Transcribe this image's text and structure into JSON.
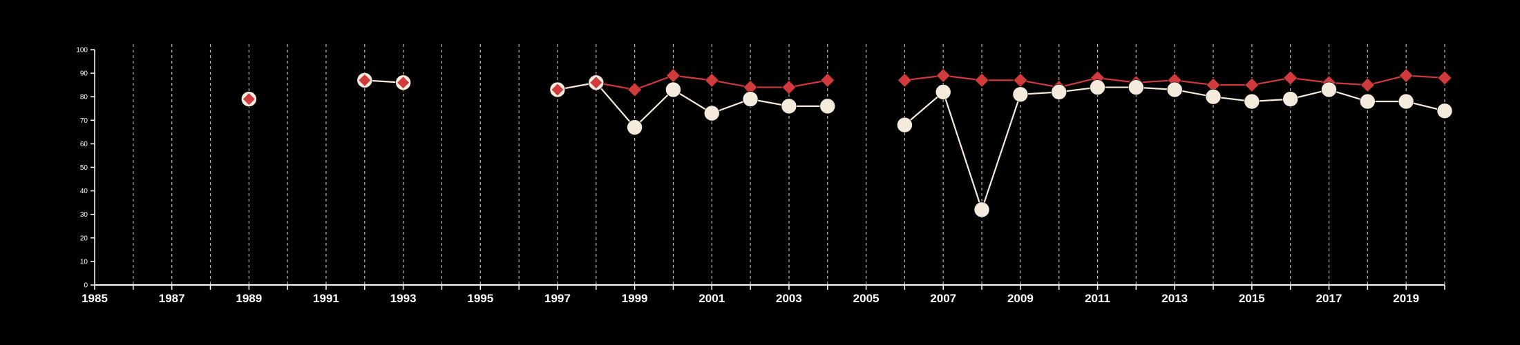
{
  "chart_data": {
    "type": "line",
    "title": "",
    "xlabel": "",
    "ylabel": "",
    "xlim": [
      1985,
      2020
    ],
    "ylim": [
      0,
      100
    ],
    "x_ticks": [
      1985,
      1987,
      1989,
      1991,
      1993,
      1995,
      1997,
      1999,
      2001,
      2003,
      2005,
      2007,
      2009,
      2011,
      2013,
      2015,
      2017,
      2019
    ],
    "y_ticks": [
      0,
      10,
      20,
      30,
      40,
      50,
      60,
      70,
      80,
      90,
      100
    ],
    "grid": "vertical dashed lines at every year",
    "legend": "none",
    "series": [
      {
        "marker": "diamond",
        "color": "#d13b3b",
        "x": [
          1989,
          1992,
          1993,
          1997,
          1998,
          1999,
          2000,
          2001,
          2002,
          2003,
          2004,
          2006,
          2007,
          2008,
          2009,
          2010,
          2011,
          2012,
          2013,
          2014,
          2015,
          2016,
          2017,
          2018,
          2019,
          2020
        ],
        "values": [
          79,
          87,
          86,
          83,
          86,
          83,
          89,
          87,
          84,
          84,
          87,
          87,
          89,
          87,
          87,
          84,
          88,
          86,
          87,
          85,
          85,
          88,
          86,
          85,
          89,
          88
        ]
      },
      {
        "marker": "circle",
        "color": "#f5ebdc",
        "x": [
          1989,
          1992,
          1993,
          1997,
          1998,
          1999,
          2000,
          2001,
          2002,
          2003,
          2004,
          2006,
          2007,
          2008,
          2009,
          2010,
          2011,
          2012,
          2013,
          2014,
          2015,
          2016,
          2017,
          2018,
          2019,
          2020
        ],
        "values": [
          79,
          87,
          86,
          83,
          86,
          67,
          83,
          73,
          79,
          76,
          76,
          68,
          82,
          32,
          81,
          82,
          84,
          84,
          83,
          80,
          78,
          79,
          83,
          78,
          78,
          74
        ]
      }
    ]
  }
}
